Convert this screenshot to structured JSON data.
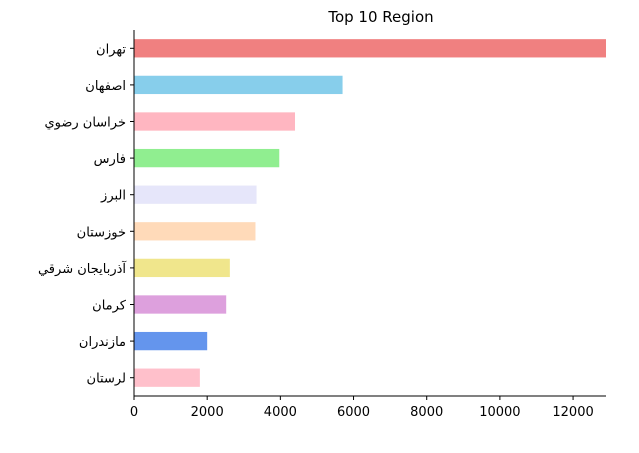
{
  "chart_data": {
    "type": "bar",
    "orientation": "horizontal",
    "title": "Top 10 Region",
    "xlabel": "",
    "ylabel": "",
    "xlim": [
      0,
      12900
    ],
    "xticks": [
      "0",
      "2000",
      "4000",
      "6000",
      "8000",
      "10000",
      "12000"
    ],
    "grid": false,
    "categories": [
      "تهران",
      "اصفهان",
      "خراسان رضوي",
      "فارس",
      "البرز",
      "خوزستان",
      "آذربايجان شرقي",
      "كرمان",
      "مازندران",
      "لرستان"
    ],
    "values": [
      12900,
      5700,
      4400,
      3970,
      3350,
      3320,
      2620,
      2520,
      2000,
      1800
    ],
    "colors": [
      "#f08080",
      "#87ceeb",
      "#ffb6c1",
      "#90ee90",
      "#e6e6fa",
      "#ffdab9",
      "#f0e68c",
      "#dda0dd",
      "#6495ed",
      "#ffc0cb"
    ]
  }
}
